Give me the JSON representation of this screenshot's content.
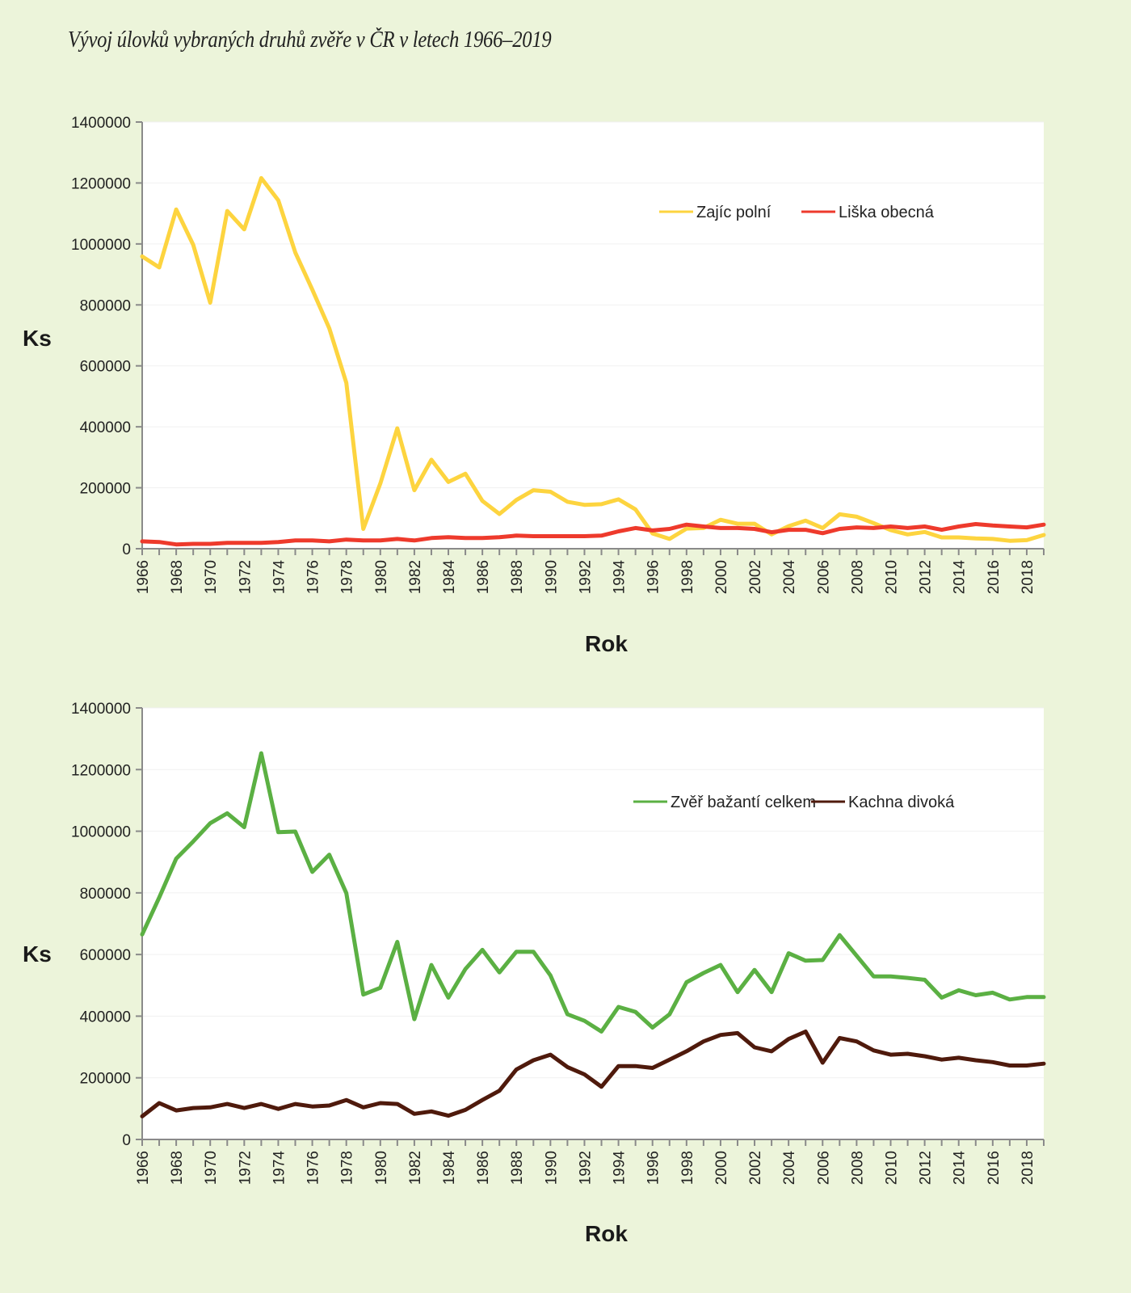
{
  "page": {
    "title": "Vývoj úlovků vybraných druhů zvěře v ČR v letech 1966–2019"
  },
  "chart_data": [
    {
      "type": "line",
      "title": "",
      "xlabel": "Rok",
      "ylabel": "Ks",
      "ylim": [
        0,
        1400000
      ],
      "yticks": [
        "0",
        "200000",
        "400000",
        "600000",
        "800000",
        "1000000",
        "1200000",
        "1400000"
      ],
      "xlim": [
        1966,
        2019
      ],
      "xtick_labels": [
        "1966",
        "1968",
        "1970",
        "1972",
        "1974",
        "1976",
        "1978",
        "1980",
        "1982",
        "1984",
        "1986",
        "1988",
        "1990",
        "1992",
        "1994",
        "1996",
        "1998",
        "2000",
        "2002",
        "2004",
        "2006",
        "2008",
        "2010",
        "2012",
        "2014",
        "2016",
        "2018"
      ],
      "grid": true,
      "legend_position": "top-right",
      "x": [
        1966,
        1967,
        1968,
        1969,
        1970,
        1971,
        1972,
        1973,
        1974,
        1975,
        1976,
        1977,
        1978,
        1979,
        1980,
        1981,
        1982,
        1983,
        1984,
        1985,
        1986,
        1987,
        1988,
        1989,
        1990,
        1991,
        1992,
        1993,
        1994,
        1995,
        1996,
        1997,
        1998,
        1999,
        2000,
        2001,
        2002,
        2003,
        2004,
        2005,
        2006,
        2007,
        2008,
        2009,
        2010,
        2011,
        2012,
        2013,
        2014,
        2015,
        2016,
        2017,
        2018,
        2019
      ],
      "series": [
        {
          "name": "Zajíc polní",
          "color": "#fdd43f",
          "values": [
            959000,
            923000,
            1113000,
            997000,
            807000,
            1108000,
            1048000,
            1216000,
            1143000,
            972000,
            850000,
            723000,
            544000,
            65000,
            214000,
            395000,
            192000,
            292000,
            219000,
            246000,
            157000,
            114000,
            160000,
            192000,
            187000,
            154000,
            144000,
            146000,
            162000,
            129000,
            50000,
            32000,
            66000,
            68000,
            95000,
            82000,
            82000,
            47000,
            74000,
            92000,
            68000,
            113000,
            105000,
            84000,
            61000,
            47000,
            55000,
            37000,
            37000,
            34000,
            32000,
            26000,
            28000,
            45000
          ]
        },
        {
          "name": "Liška obecná",
          "color": "#ee3a2c",
          "values": [
            24000,
            22000,
            14000,
            16000,
            16000,
            19000,
            19000,
            19000,
            22000,
            27000,
            27000,
            24000,
            30000,
            27000,
            27000,
            32000,
            27000,
            35000,
            38000,
            35000,
            35000,
            38000,
            43000,
            41000,
            41000,
            41000,
            41000,
            43000,
            57000,
            68000,
            60000,
            65000,
            79000,
            73000,
            68000,
            68000,
            65000,
            54000,
            62000,
            62000,
            51000,
            65000,
            70000,
            68000,
            73000,
            68000,
            73000,
            62000,
            73000,
            81000,
            76000,
            73000,
            70000,
            79000
          ]
        }
      ]
    },
    {
      "type": "line",
      "title": "",
      "xlabel": "Rok",
      "ylabel": "Ks",
      "ylim": [
        0,
        1400000
      ],
      "yticks": [
        "0",
        "200000",
        "400000",
        "600000",
        "800000",
        "1000000",
        "1200000",
        "1400000"
      ],
      "xlim": [
        1966,
        2019
      ],
      "xtick_labels": [
        "1966",
        "1968",
        "1970",
        "1972",
        "1974",
        "1976",
        "1978",
        "1980",
        "1982",
        "1984",
        "1986",
        "1988",
        "1990",
        "1992",
        "1994",
        "1996",
        "1998",
        "2000",
        "2002",
        "2004",
        "2006",
        "2008",
        "2010",
        "2012",
        "2014",
        "2016",
        "2018"
      ],
      "grid": true,
      "legend_position": "top-right",
      "x": [
        1966,
        1967,
        1968,
        1969,
        1970,
        1971,
        1972,
        1973,
        1974,
        1975,
        1976,
        1977,
        1978,
        1979,
        1980,
        1981,
        1982,
        1983,
        1984,
        1985,
        1986,
        1987,
        1988,
        1989,
        1990,
        1991,
        1992,
        1993,
        1994,
        1995,
        1996,
        1997,
        1998,
        1999,
        2000,
        2001,
        2002,
        2003,
        2004,
        2005,
        2006,
        2007,
        2008,
        2009,
        2010,
        2011,
        2012,
        2013,
        2014,
        2015,
        2016,
        2017,
        2018,
        2019
      ],
      "series": [
        {
          "name": "Zvěř bažantí celkem",
          "color": "#5bb043",
          "values": [
            665000,
            785000,
            911000,
            967000,
            1026000,
            1058000,
            1013000,
            1253000,
            997000,
            999000,
            868000,
            924000,
            799000,
            470000,
            492000,
            641000,
            390000,
            566000,
            460000,
            553000,
            615000,
            542000,
            609000,
            609000,
            532000,
            406000,
            385000,
            350000,
            430000,
            414000,
            363000,
            406000,
            510000,
            540000,
            566000,
            478000,
            550000,
            478000,
            604000,
            580000,
            582000,
            663000,
            596000,
            529000,
            529000,
            524000,
            518000,
            460000,
            484000,
            468000,
            476000,
            454000,
            462000,
            462000
          ]
        },
        {
          "name": "Kachna divoká",
          "color": "#4f1a0c",
          "values": [
            75000,
            118000,
            94000,
            102000,
            104000,
            115000,
            102000,
            115000,
            99000,
            115000,
            107000,
            110000,
            128000,
            104000,
            118000,
            115000,
            83000,
            91000,
            77000,
            96000,
            128000,
            158000,
            227000,
            257000,
            275000,
            235000,
            211000,
            171000,
            238000,
            238000,
            232000,
            259000,
            286000,
            318000,
            339000,
            345000,
            299000,
            286000,
            326000,
            350000,
            249000,
            329000,
            318000,
            289000,
            275000,
            278000,
            270000,
            259000,
            265000,
            257000,
            251000,
            240000,
            240000,
            246000
          ]
        }
      ]
    }
  ]
}
